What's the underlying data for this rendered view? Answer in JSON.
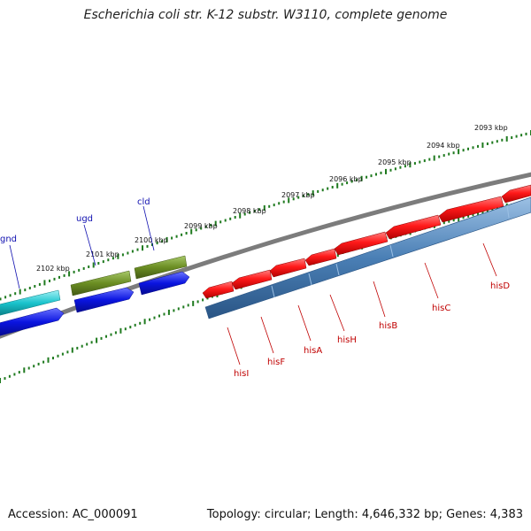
{
  "title": "Escherichia coli str. K-12 substr. W3110, complete genome",
  "footer": {
    "accession": "Accession: AC_000091",
    "topology": "Topology: circular; Length: 4,646,332 bp; Genes: 4,383"
  },
  "colors": {
    "backbone": "#808080",
    "tick": "#1f7a1f",
    "his_gene": "#e61414",
    "his_label": "#c00000",
    "operon": "#4a7fb5",
    "olive_gene": "#6b8e23",
    "blue_gene": "#0a14e0",
    "cyan_gene": "#19c3cc",
    "gene_label": "#1010b0"
  },
  "scale_labels": [
    "2093 kbp",
    "2094 kbp",
    "2095 kbp",
    "2096 kbp",
    "2097 kbp",
    "2098 kbp",
    "2099 kbp",
    "2100 kbp",
    "2101 kbp",
    "2102 kbp"
  ],
  "genes": [
    {
      "name": "gnd",
      "strand": "top"
    },
    {
      "name": "ugd",
      "strand": "top"
    },
    {
      "name": "cld",
      "strand": "top"
    },
    {
      "name": "hisI",
      "strand": "bottom"
    },
    {
      "name": "hisF",
      "strand": "bottom"
    },
    {
      "name": "hisA",
      "strand": "bottom"
    },
    {
      "name": "hisH",
      "strand": "bottom"
    },
    {
      "name": "hisB",
      "strand": "bottom"
    },
    {
      "name": "hisC",
      "strand": "bottom"
    },
    {
      "name": "hisD",
      "strand": "bottom"
    }
  ]
}
